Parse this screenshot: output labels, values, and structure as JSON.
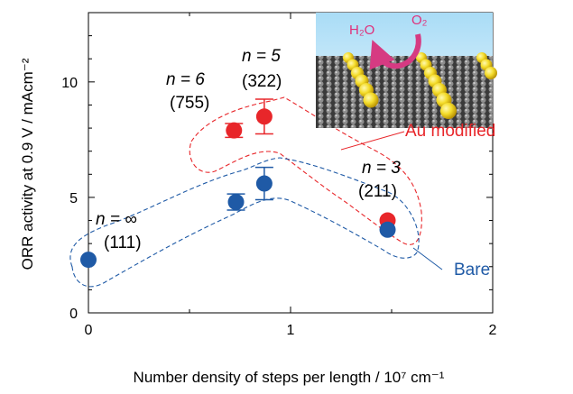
{
  "chart_data": {
    "type": "scatter",
    "title": "",
    "xlabel": "Number density of steps per length / 10⁷ cm⁻¹",
    "ylabel": "ORR activity at 0.9 V / mAcm⁻²",
    "xlim": [
      0,
      2
    ],
    "ylim": [
      0,
      13
    ],
    "x_ticks": [
      "0",
      "1",
      "2"
    ],
    "y_ticks": [
      "0",
      "5",
      "10"
    ],
    "grid": false,
    "series": [
      {
        "name": "Au modified",
        "color": "#e8262a",
        "points": [
          {
            "x": 0.72,
            "y": 7.9,
            "err": 0.3
          },
          {
            "x": 0.87,
            "y": 8.5,
            "err": 0.75
          },
          {
            "x": 1.48,
            "y": 4.0,
            "err": 0
          }
        ]
      },
      {
        "name": "Bare",
        "color": "#1f5aa6",
        "points": [
          {
            "x": 0.0,
            "y": 2.3,
            "err": 0
          },
          {
            "x": 0.73,
            "y": 4.8,
            "err": 0.35
          },
          {
            "x": 0.87,
            "y": 5.6,
            "err": 0.7
          },
          {
            "x": 1.48,
            "y": 3.6,
            "err": 0
          }
        ]
      }
    ],
    "annotations": [
      {
        "id": "inf",
        "n_label": "n = ∞",
        "miller": "(111)"
      },
      {
        "id": "six",
        "n_label": "n = 6",
        "miller": "(755)"
      },
      {
        "id": "five",
        "n_label": "n = 5",
        "miller": "(322)"
      },
      {
        "id": "three",
        "n_label": "n = 3",
        "miller": "(211)"
      }
    ],
    "inset": {
      "left_label": "H₂O",
      "right_label": "O₂"
    }
  }
}
